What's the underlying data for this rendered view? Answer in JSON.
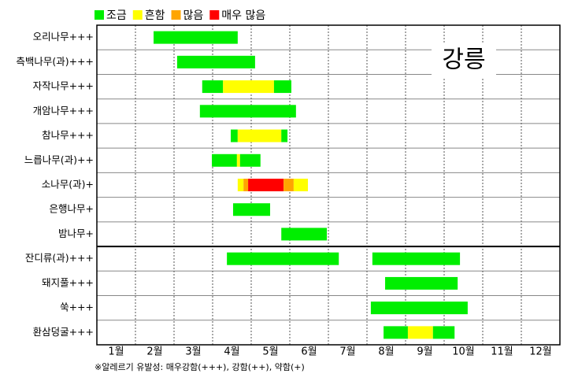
{
  "chart_data": {
    "type": "gantt",
    "region_label": "강릉",
    "footnote": "※알레르기 유발성: 매우강함(+++), 강함(++), 약함(+)",
    "levels": [
      {
        "name": "조금",
        "color": "#00ee00"
      },
      {
        "name": "흔함",
        "color": "#ffff00"
      },
      {
        "name": "많음",
        "color": "#ffa500"
      },
      {
        "name": "매우 많음",
        "color": "#ff0000"
      }
    ],
    "categories": [
      "1월",
      "2월",
      "3월",
      "4월",
      "5월",
      "6월",
      "7월",
      "8월",
      "9월",
      "10월",
      "11월",
      "12월"
    ],
    "xlim": [
      0,
      12
    ],
    "xticks": [
      1,
      2,
      3,
      4,
      5,
      6,
      7,
      8,
      9,
      10,
      11
    ],
    "divider_after": 9,
    "rows": [
      {
        "name": "오리나무+++",
        "segments": [
          {
            "level": 0,
            "start": 1.47,
            "end": 3.65
          }
        ]
      },
      {
        "name": "측백나무(과)+++",
        "segments": [
          {
            "level": 0,
            "start": 2.08,
            "end": 4.1
          }
        ]
      },
      {
        "name": "자작나무+++",
        "segments": [
          {
            "level": 0,
            "start": 2.73,
            "end": 3.27
          },
          {
            "level": 1,
            "start": 3.27,
            "end": 4.59
          },
          {
            "level": 0,
            "start": 4.59,
            "end": 5.04
          }
        ]
      },
      {
        "name": "개암나무+++",
        "segments": [
          {
            "level": 0,
            "start": 2.67,
            "end": 5.16
          }
        ]
      },
      {
        "name": "참나무+++",
        "segments": [
          {
            "level": 0,
            "start": 3.47,
            "end": 3.65
          },
          {
            "level": 1,
            "start": 3.65,
            "end": 4.78
          },
          {
            "level": 0,
            "start": 4.78,
            "end": 4.94
          }
        ]
      },
      {
        "name": "느릅나무(과)++",
        "segments": [
          {
            "level": 0,
            "start": 2.98,
            "end": 3.63
          },
          {
            "level": 1,
            "start": 3.63,
            "end": 3.71
          },
          {
            "level": 0,
            "start": 3.71,
            "end": 4.24
          }
        ]
      },
      {
        "name": "소나무(과)+",
        "segments": [
          {
            "level": 1,
            "start": 3.65,
            "end": 3.8
          },
          {
            "level": 2,
            "start": 3.8,
            "end": 3.92
          },
          {
            "level": 3,
            "start": 3.92,
            "end": 4.84
          },
          {
            "level": 2,
            "start": 4.84,
            "end": 5.1
          },
          {
            "level": 1,
            "start": 5.1,
            "end": 5.47
          }
        ]
      },
      {
        "name": "은행나무+",
        "segments": [
          {
            "level": 0,
            "start": 3.53,
            "end": 4.49
          }
        ]
      },
      {
        "name": "밤나무+",
        "segments": [
          {
            "level": 0,
            "start": 4.78,
            "end": 5.96
          }
        ]
      },
      {
        "name": "잔디류(과)+++",
        "segments": [
          {
            "level": 0,
            "start": 3.37,
            "end": 6.27
          },
          {
            "level": 0,
            "start": 7.14,
            "end": 9.41
          }
        ]
      },
      {
        "name": "돼지풀+++",
        "segments": [
          {
            "level": 0,
            "start": 7.47,
            "end": 9.35
          }
        ]
      },
      {
        "name": "쑥+++",
        "segments": [
          {
            "level": 0,
            "start": 7.1,
            "end": 9.61
          }
        ]
      },
      {
        "name": "환삼덩굴+++",
        "segments": [
          {
            "level": 0,
            "start": 7.43,
            "end": 8.06
          },
          {
            "level": 1,
            "start": 8.06,
            "end": 8.71
          },
          {
            "level": 0,
            "start": 8.71,
            "end": 9.27
          }
        ]
      }
    ]
  }
}
